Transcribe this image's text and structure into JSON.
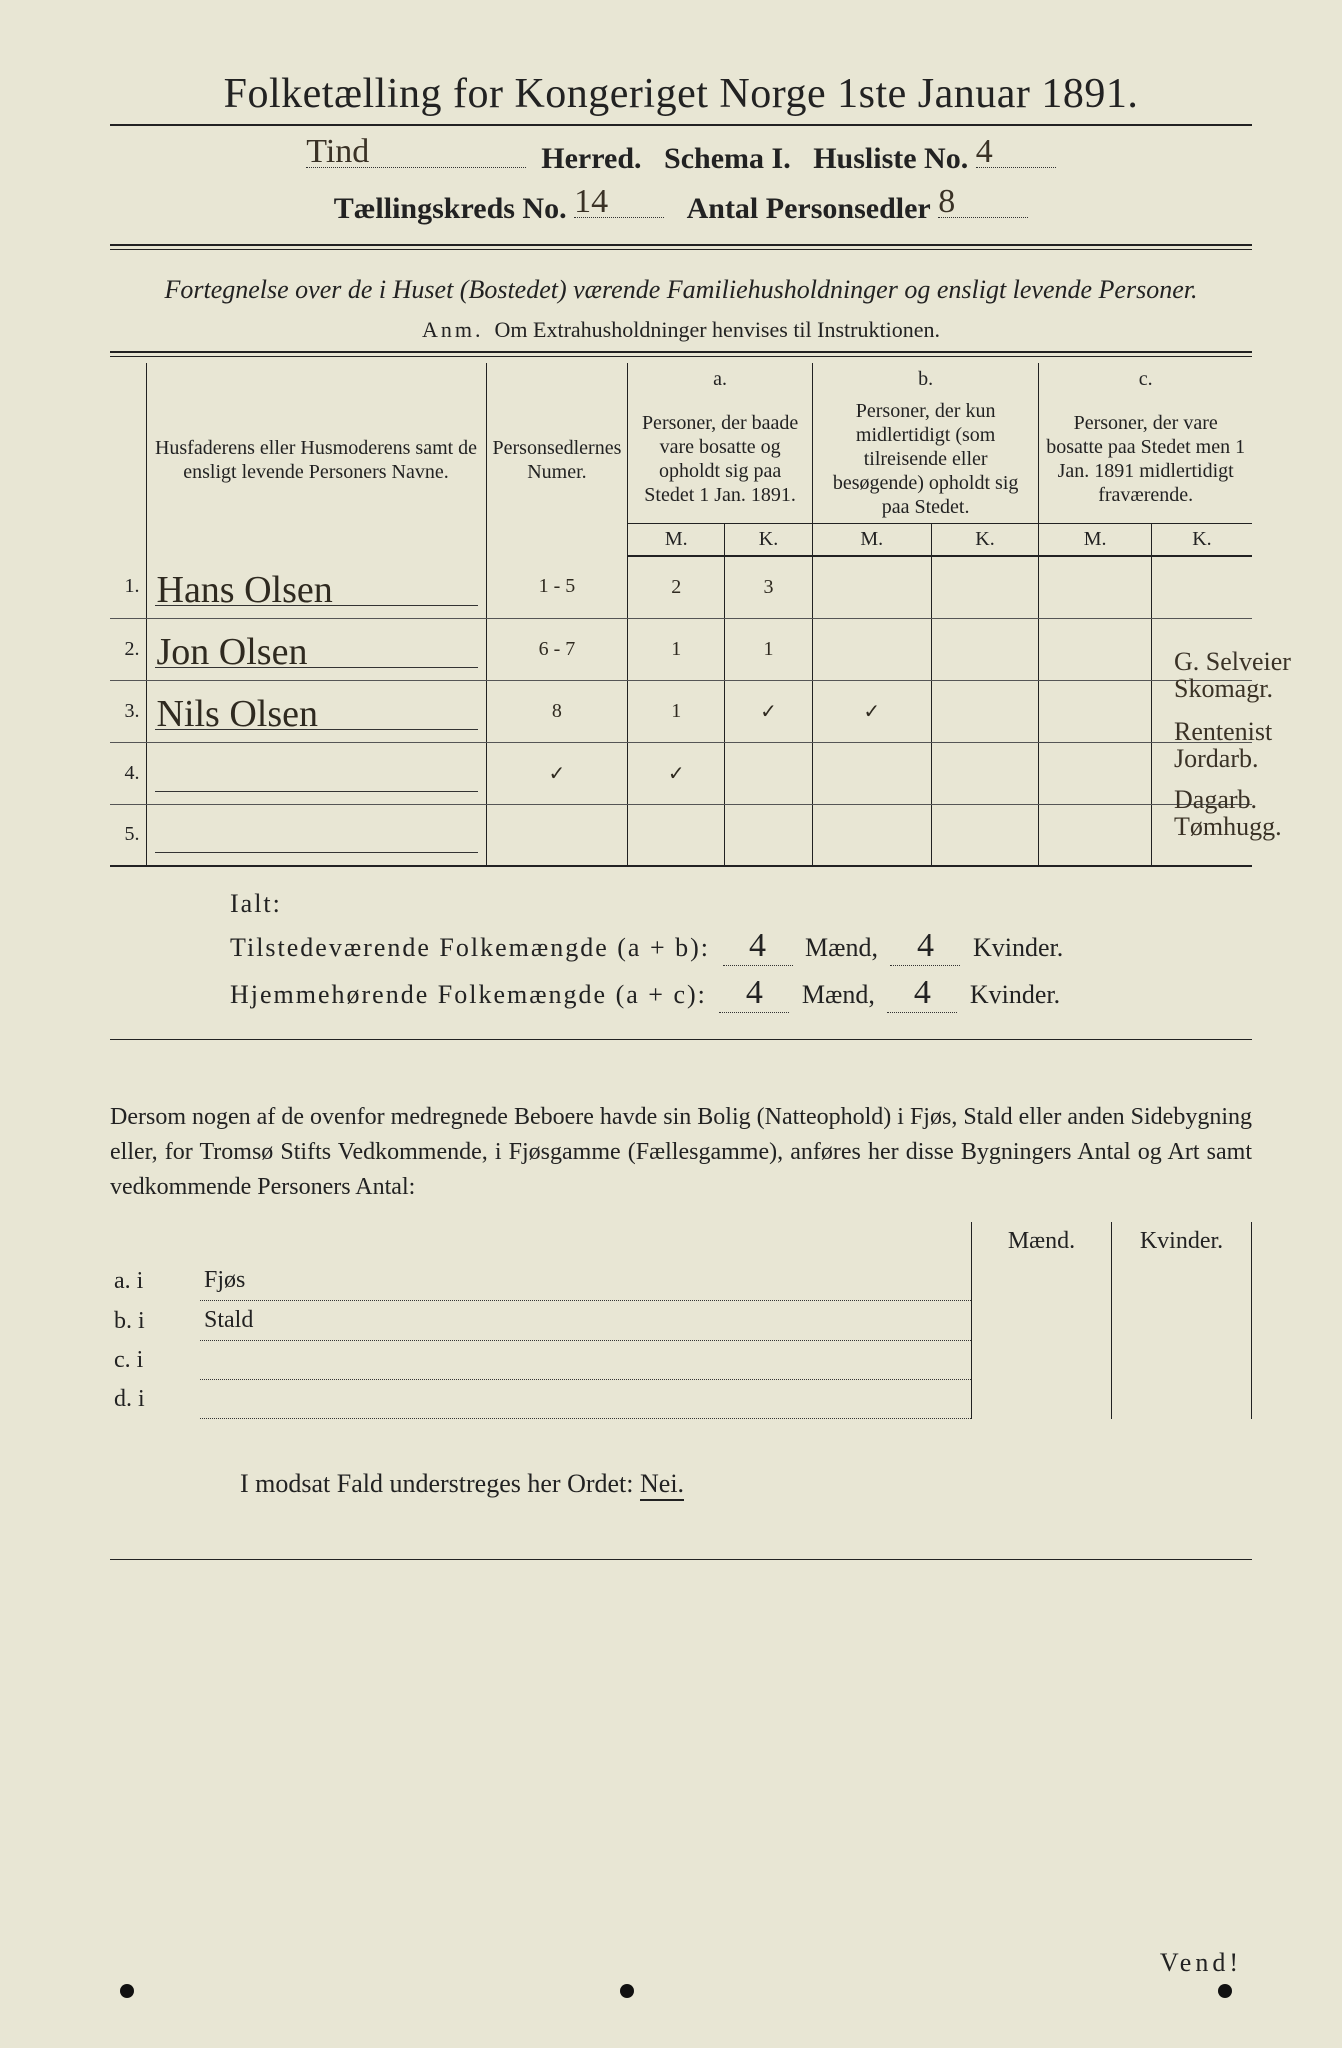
{
  "title": "Folketælling for Kongeriget Norge 1ste Januar 1891.",
  "header": {
    "herred_label": "Herred.",
    "herred_value": "Tind",
    "schema_label": "Schema I.",
    "husliste_label": "Husliste No.",
    "husliste_value": "4",
    "kreds_label": "Tællingskreds No.",
    "kreds_value": "14",
    "antal_label": "Antal Personsedler",
    "antal_value": "8"
  },
  "subtitle": "Fortegnelse over de i Huset (Bostedet) værende Familiehusholdninger og ensligt levende Personer.",
  "anm": {
    "leader": "Anm.",
    "text": "Om Extrahusholdninger henvises til Instruktionen."
  },
  "columns": {
    "names": "Husfaderens eller Husmoderens samt de ensligt levende Personers Navne.",
    "numer": "Personsedlernes Numer.",
    "a_head": "a.",
    "a_text": "Personer, der baade vare bosatte og opholdt sig paa Stedet 1 Jan. 1891.",
    "b_head": "b.",
    "b_text": "Personer, der kun midlertidigt (som tilreisende eller besøgende) opholdt sig paa Stedet.",
    "c_head": "c.",
    "c_text": "Personer, der vare bosatte paa Stedet men 1 Jan. 1891 midlertidigt fraværende.",
    "m": "M.",
    "k": "K."
  },
  "rows": [
    {
      "n": "1.",
      "name": "Hans Olsen",
      "numer": "1 - 5",
      "am": "2",
      "ak": "3",
      "bm": "",
      "bk": "",
      "cm": "",
      "ck": "",
      "note": "G. Selveier Skomagr."
    },
    {
      "n": "2.",
      "name": "Jon Olsen",
      "numer": "6 - 7",
      "am": "1",
      "ak": "1",
      "bm": "",
      "bk": "",
      "cm": "",
      "ck": "",
      "note": "Rentenist Jordarb."
    },
    {
      "n": "3.",
      "name": "Nils Olsen",
      "numer": "8",
      "am": "1",
      "ak": "✓",
      "bm": "✓",
      "bk": "",
      "cm": "",
      "ck": "",
      "note": "Dagarb. Tømhugg."
    },
    {
      "n": "4.",
      "name": "",
      "numer": "✓",
      "am": "✓",
      "ak": "",
      "bm": "",
      "bk": "",
      "cm": "",
      "ck": "",
      "note": ""
    },
    {
      "n": "5.",
      "name": "",
      "numer": "",
      "am": "",
      "ak": "",
      "bm": "",
      "bk": "",
      "cm": "",
      "ck": "",
      "note": ""
    }
  ],
  "totals": {
    "ialt": "Ialt:",
    "line1_label": "Tilstedeværende Folkemængde (a + b):",
    "line2_label": "Hjemmehørende Folkemængde (a + c):",
    "m1": "4",
    "k1": "4",
    "m2": "4",
    "k2": "4",
    "maend": "Mænd,",
    "kvinder": "Kvinder."
  },
  "para": "Dersom nogen af de ovenfor medregnede Beboere havde sin Bolig (Natteophold) i Fjøs, Stald eller anden Sidebygning eller, for Tromsø Stifts Vedkommende, i Fjøsgamme (Fællesgamme), anføres her disse Bygningers Antal og Art samt vedkommende Personers Antal:",
  "sidebygning": {
    "maend": "Mænd.",
    "kvinder": "Kvinder.",
    "rows": [
      {
        "label": "a.  i",
        "text": "Fjøs"
      },
      {
        "label": "b.  i",
        "text": "Stald"
      },
      {
        "label": "c.  i",
        "text": ""
      },
      {
        "label": "d.  i",
        "text": ""
      }
    ]
  },
  "nei": "I modsat Fald understreges her Ordet: ",
  "nei_word": "Nei.",
  "vend": "Vend!",
  "style": {
    "paper": "#e8e6d4",
    "ink": "#222222",
    "handwriting": "#3a3226",
    "title_fontsize": 42,
    "body_fontsize": 24,
    "table_fontsize": 20,
    "hw_fontsize": 38
  }
}
